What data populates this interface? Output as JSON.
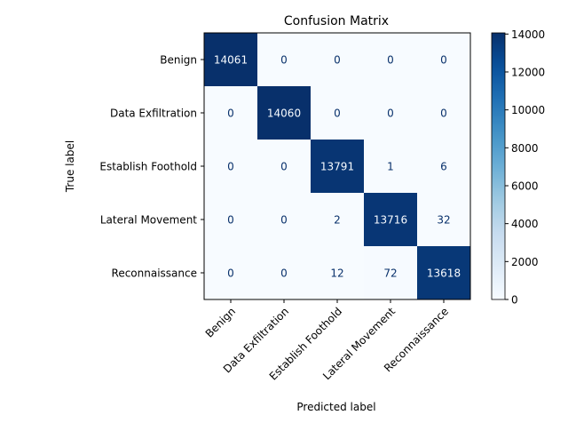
{
  "chart_data": {
    "type": "heatmap",
    "title": "Confusion Matrix",
    "xlabel": "Predicted label",
    "ylabel": "True label",
    "row_labels": [
      "Benign",
      "Data Exfiltration",
      "Establish Foothold",
      "Lateral Movement",
      "Reconnaissance"
    ],
    "col_labels": [
      "Benign",
      "Data Exfiltration",
      "Establish Foothold",
      "Lateral Movement",
      "Reconnaissance"
    ],
    "values": [
      [
        14061,
        0,
        0,
        0,
        0
      ],
      [
        0,
        14060,
        0,
        0,
        0
      ],
      [
        0,
        0,
        13791,
        1,
        6
      ],
      [
        0,
        0,
        2,
        13716,
        32
      ],
      [
        0,
        0,
        12,
        72,
        13618
      ]
    ],
    "colormap": "Blues",
    "vmin": 0,
    "vmax": 14061,
    "colorbar_ticks": [
      0,
      2000,
      4000,
      6000,
      8000,
      10000,
      12000,
      14000
    ]
  }
}
